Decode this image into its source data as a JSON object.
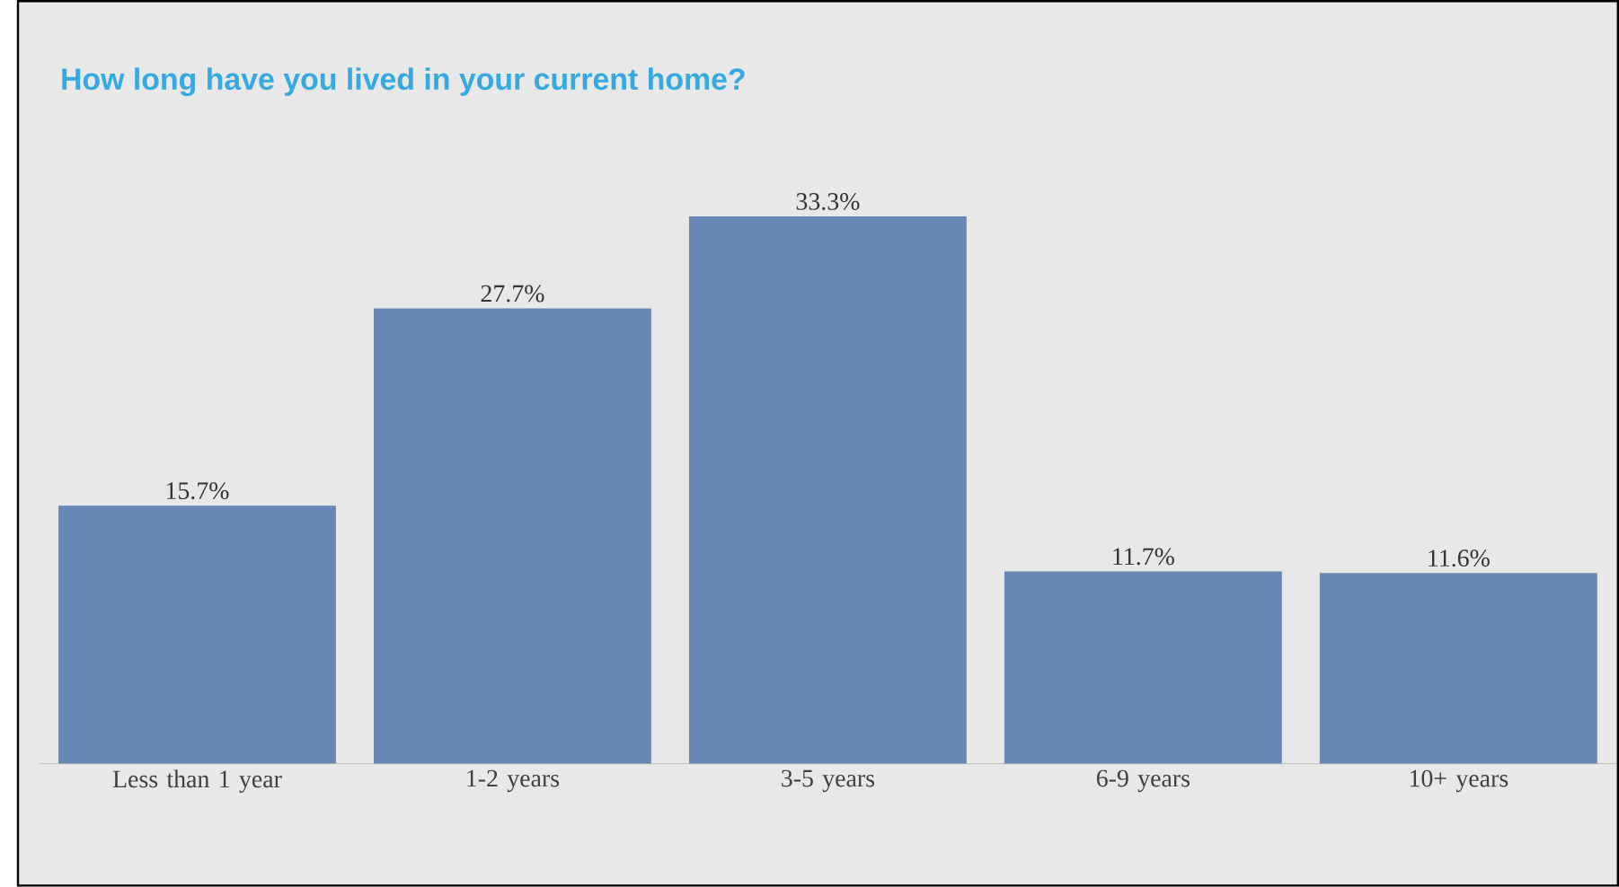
{
  "chart_data": {
    "type": "bar",
    "title": "How long have you lived in your current home?",
    "categories": [
      "Less than 1 year",
      "1-2 years",
      "3-5 years",
      "6-9 years",
      "10+ years"
    ],
    "values": [
      15.7,
      27.7,
      33.3,
      11.7,
      11.6
    ],
    "value_labels": [
      "15.7%",
      "27.7%",
      "33.3%",
      "11.7%",
      "11.6%"
    ],
    "color": "#6688b4"
  }
}
